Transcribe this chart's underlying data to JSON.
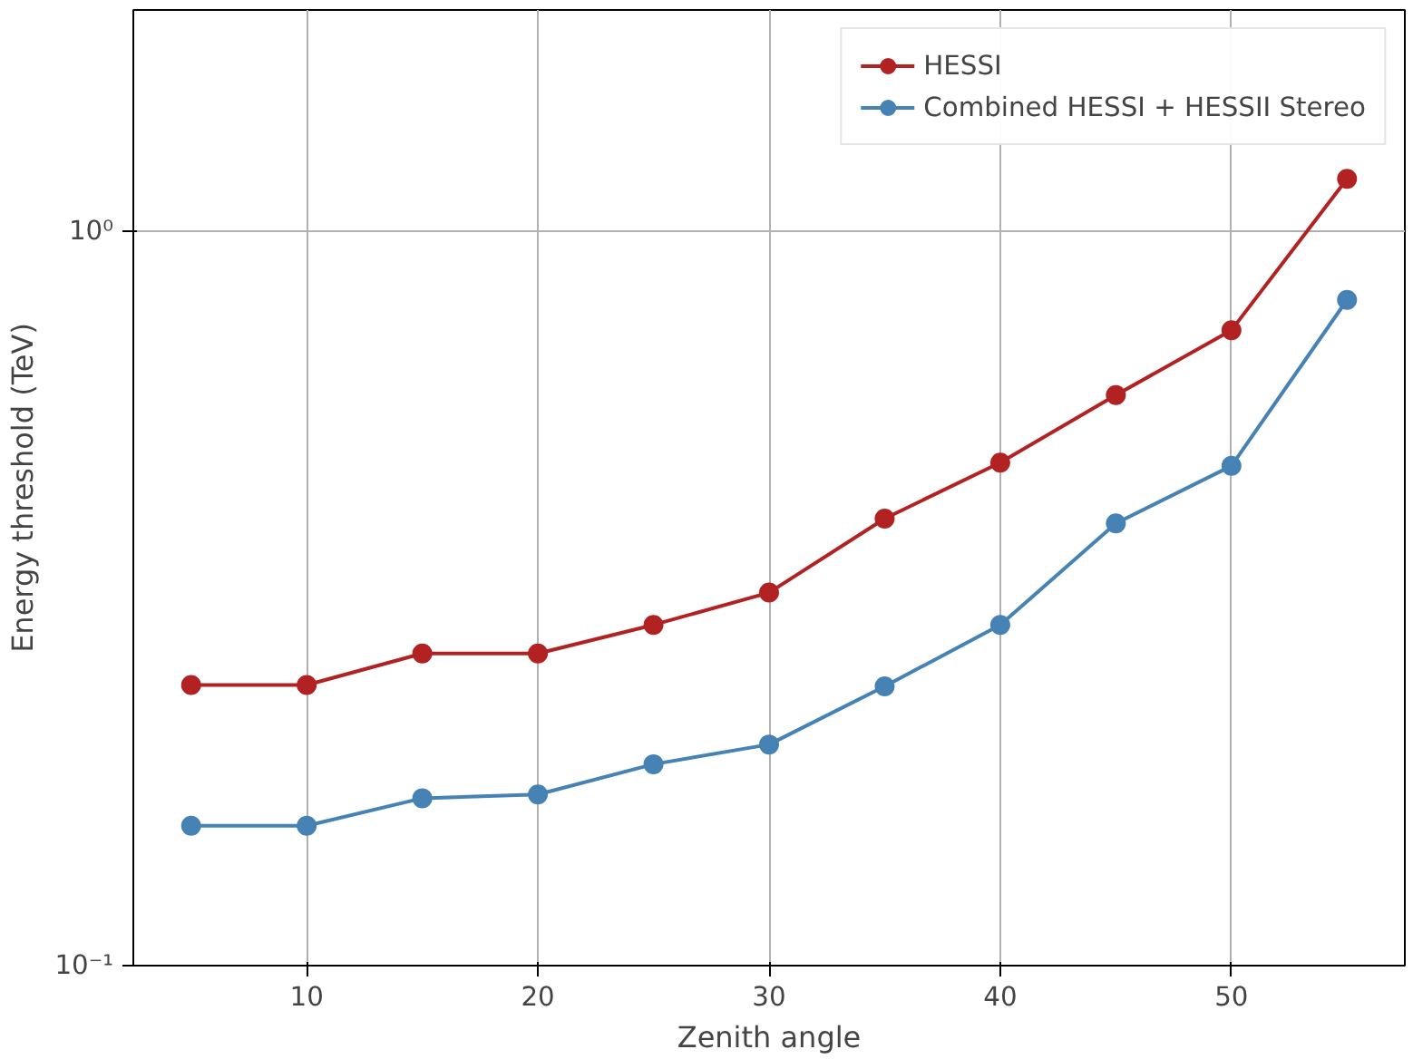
{
  "chart_data": {
    "type": "line",
    "xlabel": "Zenith angle",
    "ylabel": "Energy threshold (TeV)",
    "x": [
      5,
      10,
      15,
      20,
      25,
      30,
      35,
      40,
      45,
      50,
      55
    ],
    "series": [
      {
        "name": "HESSI",
        "color": "#b22222",
        "values": [
          0.241,
          0.241,
          0.266,
          0.266,
          0.291,
          0.322,
          0.406,
          0.484,
          0.598,
          0.733,
          1.178
        ]
      },
      {
        "name": "Combined HESSI + HESSII Stereo",
        "color": "#4682b4",
        "values": [
          0.155,
          0.155,
          0.169,
          0.171,
          0.188,
          0.2,
          0.24,
          0.291,
          0.4,
          0.479,
          0.806
        ]
      }
    ],
    "log": "y",
    "xlim": [
      2.5,
      57.5
    ],
    "ylim": [
      0.1,
      2.0
    ],
    "xticks": [
      10,
      20,
      30,
      40,
      50
    ],
    "yticks": [
      {
        "value": 0.1,
        "label": "10⁻¹"
      },
      {
        "value": 1,
        "label": "10⁰"
      }
    ],
    "grid": true,
    "legend": "top right",
    "marker": "circle",
    "line_style": "solid"
  }
}
